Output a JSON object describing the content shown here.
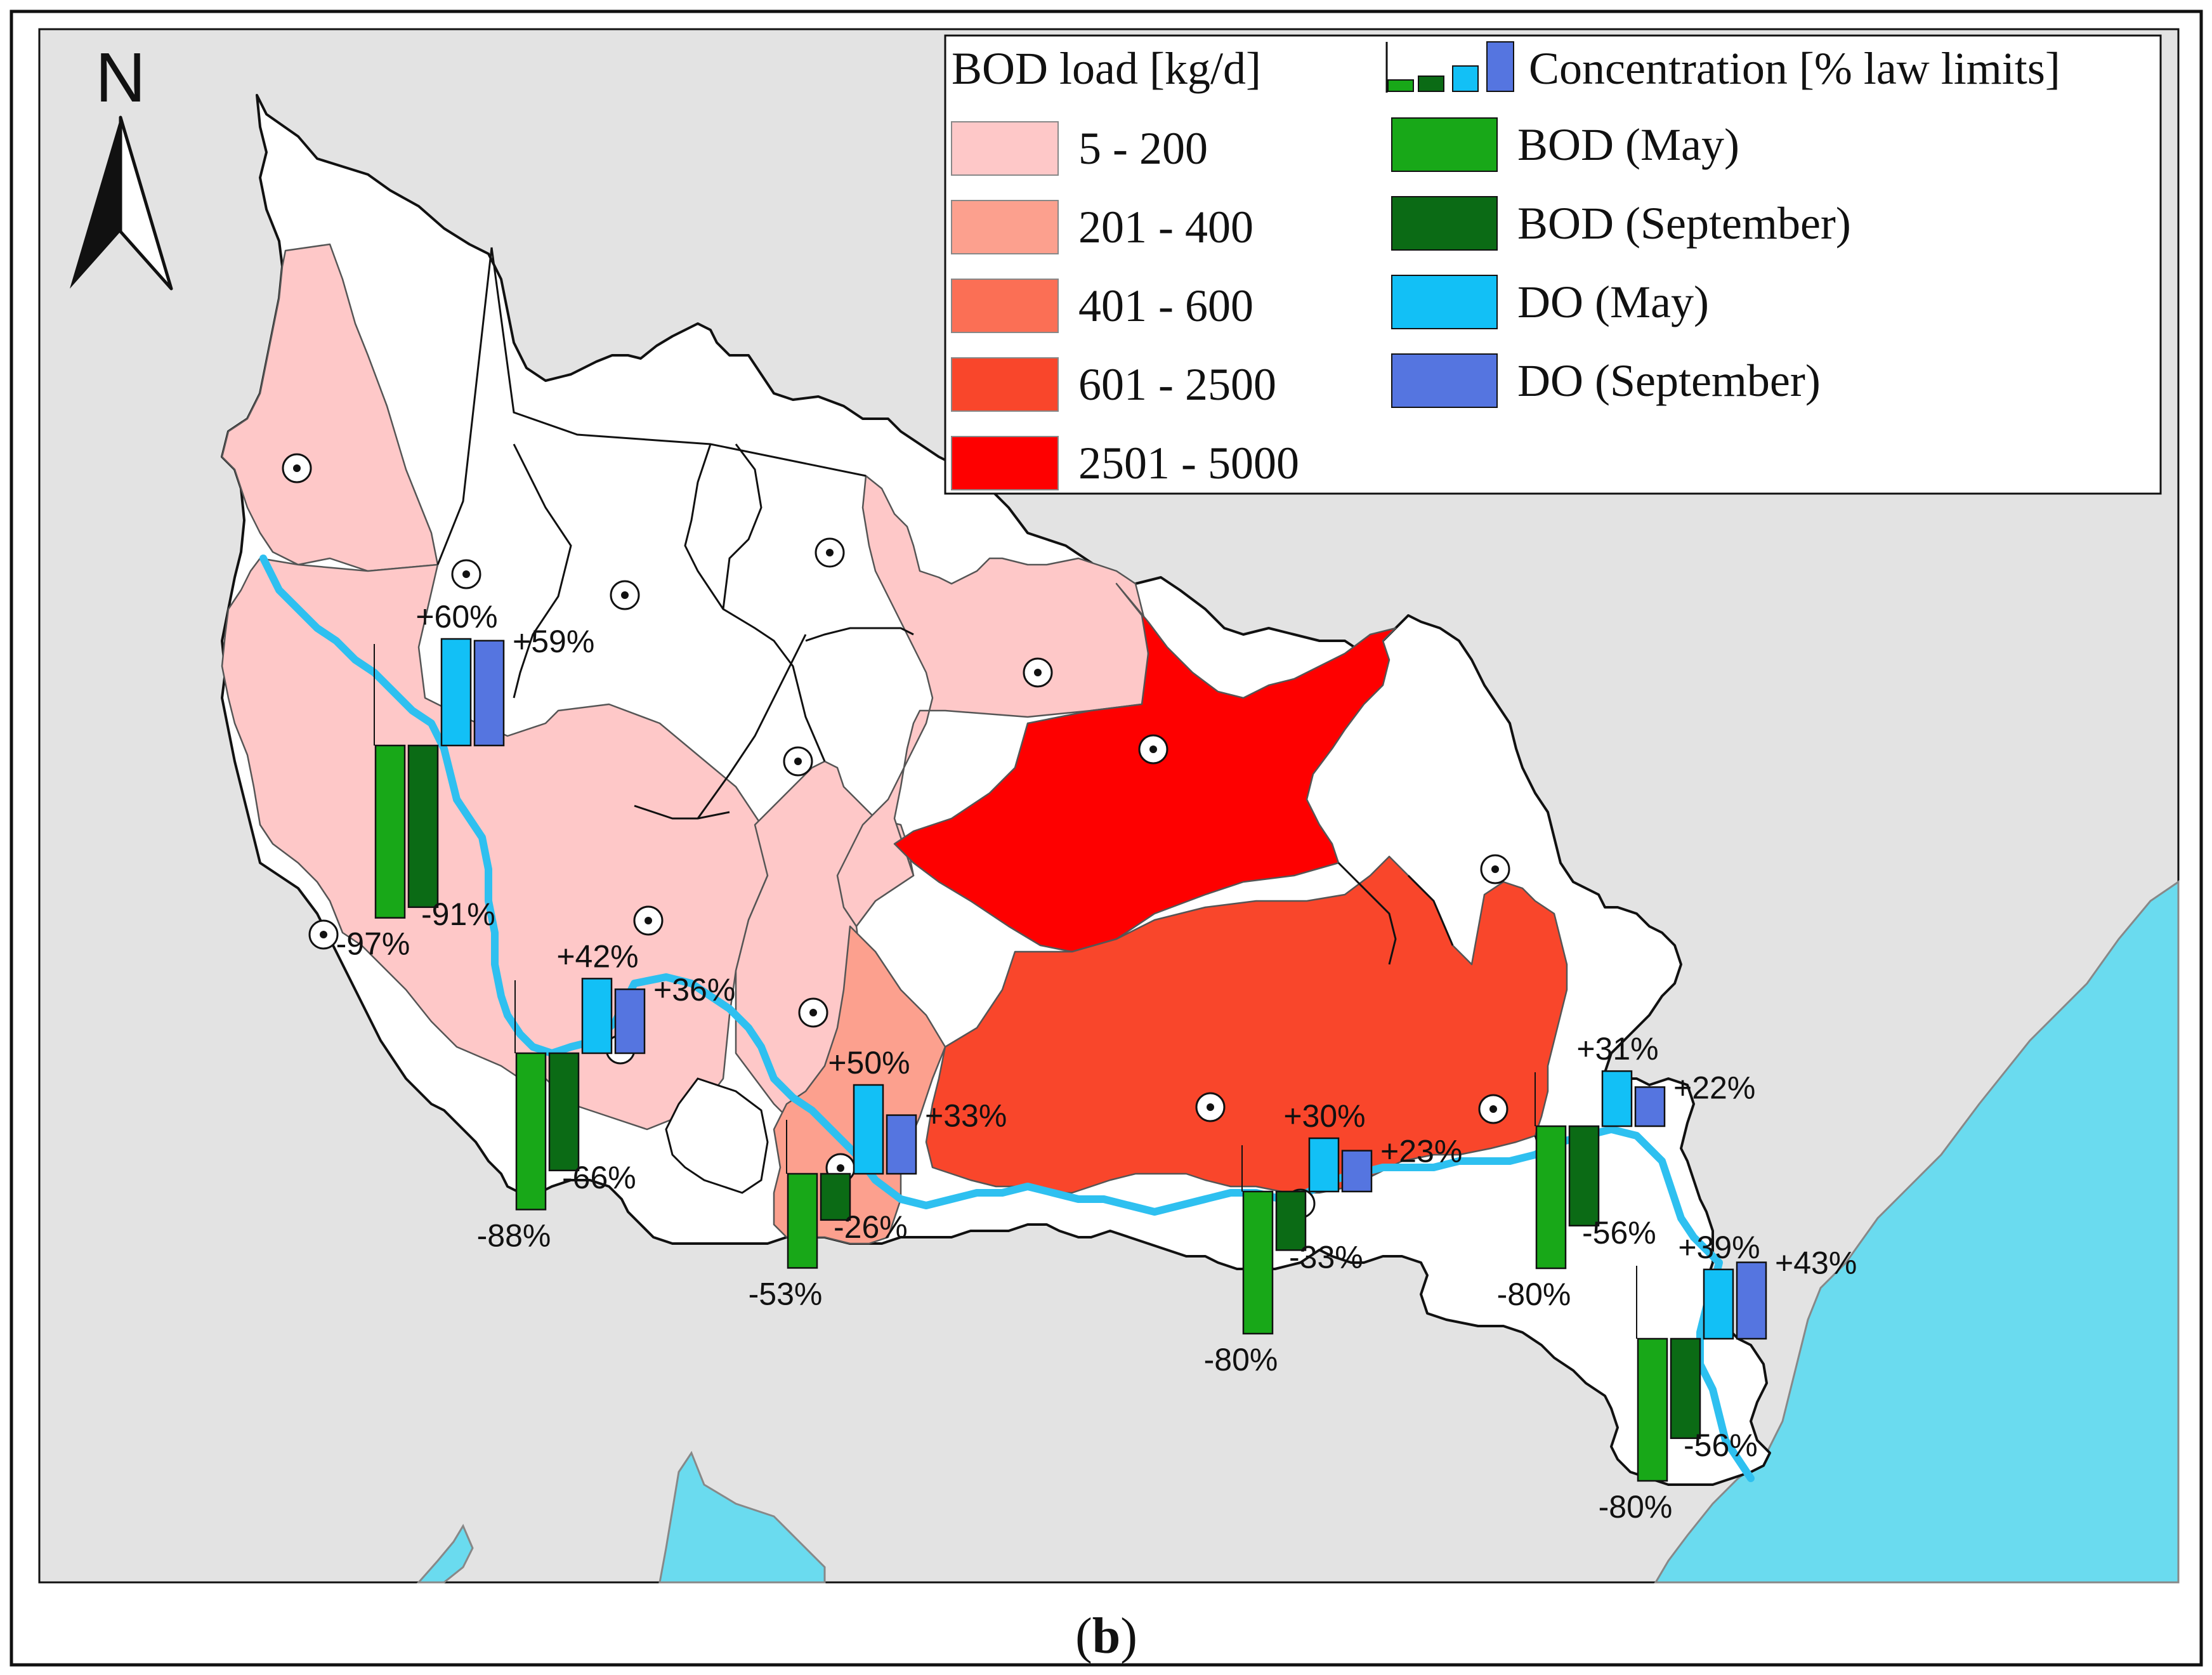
{
  "north_label": "N",
  "panel_label": {
    "open": "(",
    "letter": "b",
    "close": ")"
  },
  "legend": {
    "load_title": "BOD load [kg/d]",
    "load_classes": [
      {
        "label": "5 - 200",
        "color": "#fec8c8"
      },
      {
        "label": "201 - 400",
        "color": "#fca08e"
      },
      {
        "label": "401 - 600",
        "color": "#fb6f55"
      },
      {
        "label": "601 - 2500",
        "color": "#f9462b"
      },
      {
        "label": "2501 - 5000",
        "color": "#fe0000"
      }
    ],
    "conc_title": "Concentration [% law limits]",
    "conc_series": [
      {
        "label": "BOD (May)",
        "color": "#18a818"
      },
      {
        "label": "BOD (September)",
        "color": "#0b6b15"
      },
      {
        "label": "DO (May)",
        "color": "#12c0f6"
      },
      {
        "label": "DO (September)",
        "color": "#5575e0"
      }
    ]
  },
  "colors": {
    "land": "#e3e3e3",
    "water": "#6adbef",
    "basin": "#ffffff",
    "river": "#2ec0f0"
  },
  "stations": [
    {
      "bod_may": "-97%",
      "bod_sep": "-91%",
      "do_may": "+60%",
      "do_sep": "+59%"
    },
    {
      "bod_may": "-88%",
      "bod_sep": "-66%",
      "do_may": "+42%",
      "do_sep": "+36%"
    },
    {
      "bod_may": "-53%",
      "bod_sep": "-26%",
      "do_may": "+50%",
      "do_sep": "+33%"
    },
    {
      "bod_may": "-80%",
      "bod_sep": "-33%",
      "do_may": "+30%",
      "do_sep": "+23%"
    },
    {
      "bod_may": "-80%",
      "bod_sep": "-56%",
      "do_may": "+31%",
      "do_sep": "+22%"
    },
    {
      "bod_may": "-80%",
      "bod_sep": "-56%",
      "do_may": "+39%",
      "do_sep": "+43%"
    }
  ]
}
